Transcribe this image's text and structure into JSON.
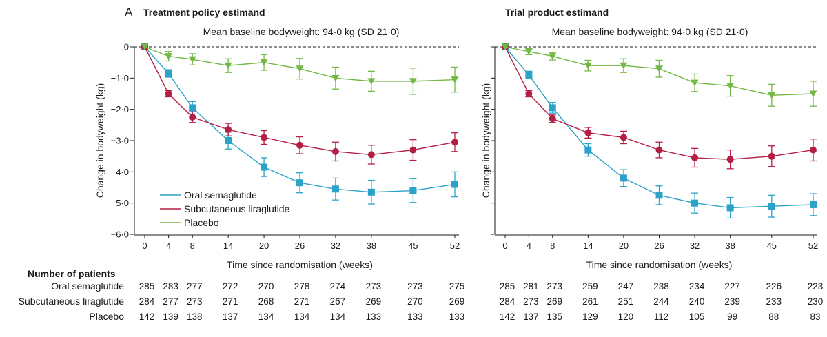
{
  "chart_data": [
    {
      "type": "line",
      "panel_letter": "A",
      "title": "Treatment policy estimand",
      "subtitle": "Mean baseline bodyweight: 94·0 kg (SD 21·0)",
      "xlabel": "Time since randomisation (weeks)",
      "ylabel": "Change in bodyweight (kg)",
      "x": [
        0,
        4,
        8,
        14,
        20,
        26,
        32,
        38,
        45,
        52
      ],
      "x_tick_labels": [
        "0",
        "4",
        "8",
        "14",
        "20",
        "26",
        "32",
        "38",
        "45",
        "52"
      ],
      "ylim": [
        -6,
        0
      ],
      "y_ticks": [
        0,
        -1,
        -2,
        -3,
        -4,
        -5,
        -6
      ],
      "y_tick_labels": [
        "0",
        "−1·0",
        "−2·0",
        "−3·0",
        "−4·0",
        "−5·0",
        "−6·0"
      ],
      "reference_line": 0,
      "legend_position": "bottom-left",
      "series": [
        {
          "name": "Oral semaglutide",
          "color": "#2ba3c9",
          "marker": "square",
          "values": [
            0,
            -0.85,
            -1.95,
            -3.0,
            -3.85,
            -4.35,
            -4.55,
            -4.65,
            -4.6,
            -4.4
          ],
          "error": [
            0,
            0.12,
            0.2,
            0.27,
            0.3,
            0.32,
            0.35,
            0.38,
            0.38,
            0.4
          ]
        },
        {
          "name": "Subcutaneous liraglutide",
          "color": "#b31f45",
          "marker": "circle",
          "values": [
            0,
            -1.5,
            -2.25,
            -2.65,
            -2.9,
            -3.15,
            -3.35,
            -3.45,
            -3.3,
            -3.05
          ],
          "error": [
            0,
            0.1,
            0.17,
            0.2,
            0.22,
            0.27,
            0.3,
            0.3,
            0.33,
            0.3
          ]
        },
        {
          "name": "Placebo",
          "color": "#73b744",
          "marker": "triangle-down",
          "values": [
            0,
            -0.3,
            -0.4,
            -0.6,
            -0.5,
            -0.7,
            -1.0,
            -1.1,
            -1.1,
            -1.05
          ],
          "error": [
            0,
            0.15,
            0.18,
            0.22,
            0.25,
            0.33,
            0.35,
            0.32,
            0.42,
            0.4
          ]
        }
      ],
      "patients": {
        "title": "Number of patients",
        "rows": [
          {
            "label": "Oral semaglutide",
            "values": [
              "285",
              "283",
              "277",
              "272",
              "270",
              "278",
              "274",
              "273",
              "273",
              "275"
            ]
          },
          {
            "label": "Subcutaneous liraglutide",
            "values": [
              "284",
              "277",
              "273",
              "271",
              "268",
              "271",
              "267",
              "269",
              "270",
              "269"
            ]
          },
          {
            "label": "Placebo",
            "values": [
              "142",
              "139",
              "138",
              "137",
              "134",
              "134",
              "134",
              "133",
              "133",
              "133"
            ]
          }
        ]
      }
    },
    {
      "type": "line",
      "panel_letter": "",
      "title": "Trial product estimand",
      "subtitle": "Mean baseline bodyweight: 94·0 kg (SD 21·0)",
      "xlabel": "Time since randomisation (weeks)",
      "ylabel": "Change in bodyweight (kg)",
      "x": [
        0,
        4,
        8,
        14,
        20,
        26,
        32,
        38,
        45,
        52
      ],
      "x_tick_labels": [
        "0",
        "4",
        "8",
        "14",
        "20",
        "26",
        "32",
        "38",
        "45",
        "52"
      ],
      "ylim": [
        -6,
        0
      ],
      "y_ticks": [
        0,
        -1,
        -2,
        -3,
        -4,
        -5,
        -6
      ],
      "y_tick_labels": [],
      "reference_line": 0,
      "legend_position": "none",
      "series": [
        {
          "name": "Oral semaglutide",
          "color": "#2ba3c9",
          "marker": "square",
          "values": [
            0,
            -0.9,
            -1.95,
            -3.3,
            -4.2,
            -4.75,
            -5.0,
            -5.15,
            -5.1,
            -5.05
          ],
          "error": [
            0,
            0.12,
            0.17,
            0.2,
            0.27,
            0.3,
            0.32,
            0.33,
            0.35,
            0.35
          ]
        },
        {
          "name": "Subcutaneous liraglutide",
          "color": "#b31f45",
          "marker": "circle",
          "values": [
            0,
            -1.5,
            -2.3,
            -2.75,
            -2.9,
            -3.3,
            -3.55,
            -3.6,
            -3.5,
            -3.3
          ],
          "error": [
            0,
            0.1,
            0.12,
            0.17,
            0.2,
            0.25,
            0.3,
            0.3,
            0.33,
            0.35
          ]
        },
        {
          "name": "Placebo",
          "color": "#73b744",
          "marker": "triangle-down",
          "values": [
            0,
            -0.15,
            -0.3,
            -0.6,
            -0.6,
            -0.7,
            -1.15,
            -1.25,
            -1.55,
            -1.5
          ],
          "error": [
            0,
            0.1,
            0.12,
            0.17,
            0.22,
            0.27,
            0.28,
            0.33,
            0.35,
            0.4
          ]
        }
      ],
      "patients": {
        "title": "",
        "rows": [
          {
            "label": "",
            "values": [
              "285",
              "281",
              "273",
              "259",
              "247",
              "238",
              "234",
              "227",
              "226",
              "223"
            ]
          },
          {
            "label": "",
            "values": [
              "284",
              "273",
              "269",
              "261",
              "251",
              "244",
              "240",
              "239",
              "233",
              "230"
            ]
          },
          {
            "label": "",
            "values": [
              "142",
              "137",
              "135",
              "129",
              "120",
              "112",
              "105",
              "99",
              "88",
              "83"
            ]
          }
        ]
      }
    }
  ]
}
